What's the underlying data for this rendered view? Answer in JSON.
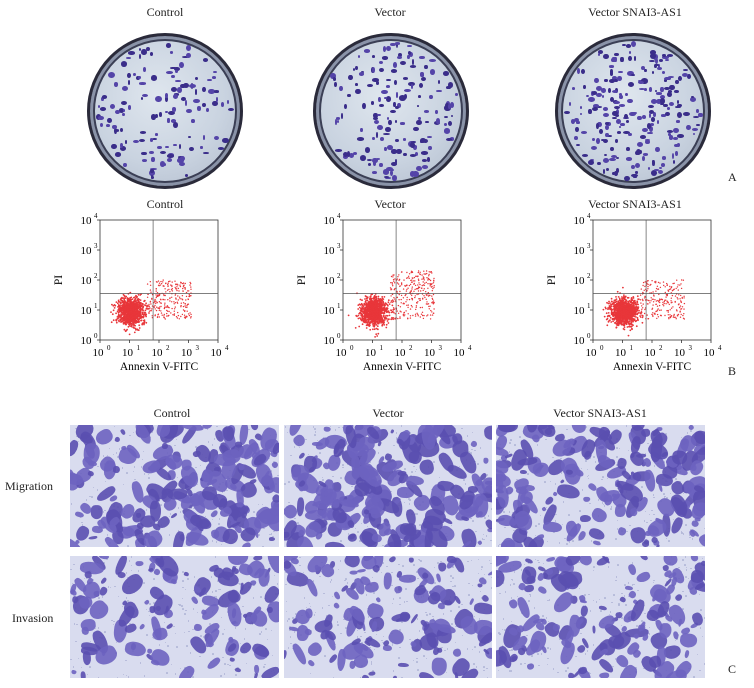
{
  "panelA": {
    "columns": [
      "Control",
      "Vector",
      "Vector SNAI3-AS1"
    ],
    "letter": "A"
  },
  "panelB": {
    "columns": [
      "Control",
      "Vector",
      "Vector SNAI3-AS1"
    ],
    "letter": "B",
    "ylabel": "PI",
    "xlabel": "Annexin V-FITC",
    "xticks": [
      "10",
      "10",
      "10",
      "10",
      "10"
    ],
    "xtick_exps": [
      "0",
      "1",
      "2",
      "3",
      "4"
    ],
    "yticks": [
      "10",
      "10",
      "10",
      "10",
      "10"
    ],
    "ytick_exps": [
      "0",
      "1",
      "2",
      "3",
      "4"
    ],
    "colors": {
      "dots": "#e8363a",
      "axis": "#333333"
    }
  },
  "panelC": {
    "columns": [
      "Control",
      "Vector",
      "Vector SNAI3-AS1"
    ],
    "rows": [
      "Migration",
      "Invasion"
    ],
    "letter": "C"
  },
  "chart_data": [
    {
      "type": "scatter",
      "title": "Control",
      "xlabel": "Annexin V-FITC",
      "ylabel": "PI",
      "x_scale": "log",
      "y_scale": "log",
      "xlim": [
        1,
        10000
      ],
      "ylim": [
        1,
        10000
      ]
    },
    {
      "type": "scatter",
      "title": "Vector",
      "xlabel": "Annexin V-FITC",
      "ylabel": "PI",
      "x_scale": "log",
      "y_scale": "log",
      "xlim": [
        1,
        10000
      ],
      "ylim": [
        1,
        10000
      ]
    },
    {
      "type": "scatter",
      "title": "Vector SNAI3-AS1",
      "xlabel": "Annexin V-FITC",
      "ylabel": "PI",
      "x_scale": "log",
      "y_scale": "log",
      "xlim": [
        1,
        10000
      ],
      "ylim": [
        1,
        10000
      ]
    }
  ]
}
